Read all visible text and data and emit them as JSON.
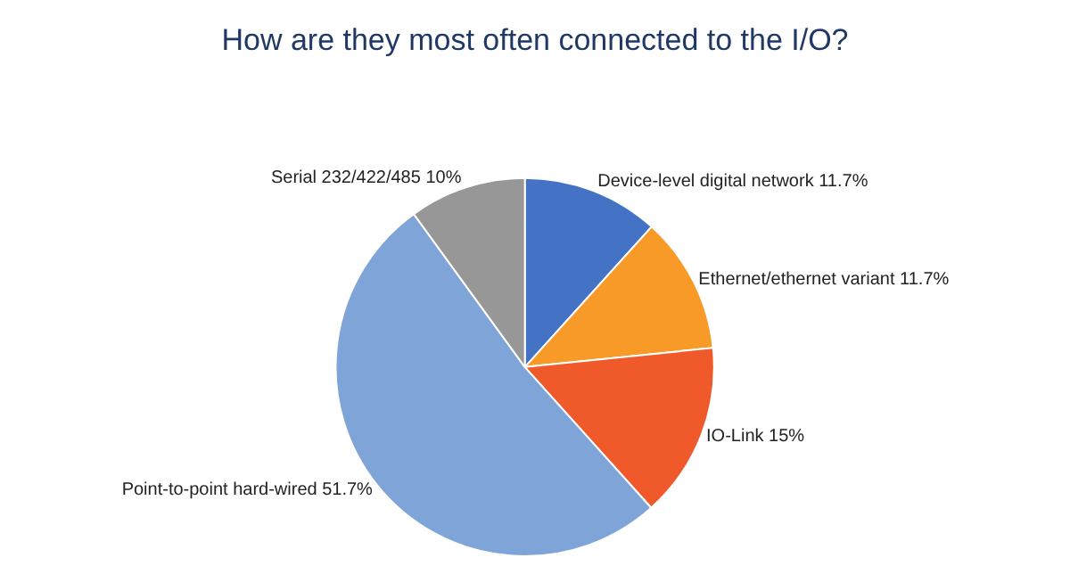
{
  "chart_data": {
    "type": "pie",
    "title": "How are they most often connected to the I/O?",
    "categories": [
      "Device-level digital network",
      "Ethernet/ethernet variant",
      "IO-Link",
      "Point-to-point hard-wired",
      "Serial 232/422/485"
    ],
    "values": [
      11.7,
      11.7,
      15,
      51.7,
      10
    ],
    "value_labels": [
      "11.7%",
      "11.7%",
      "15%",
      "51.7%",
      "10%"
    ],
    "colors": [
      "#4472c4",
      "#f79a27",
      "#f0592a",
      "#7fa4d8",
      "#979797"
    ],
    "legend": false
  }
}
